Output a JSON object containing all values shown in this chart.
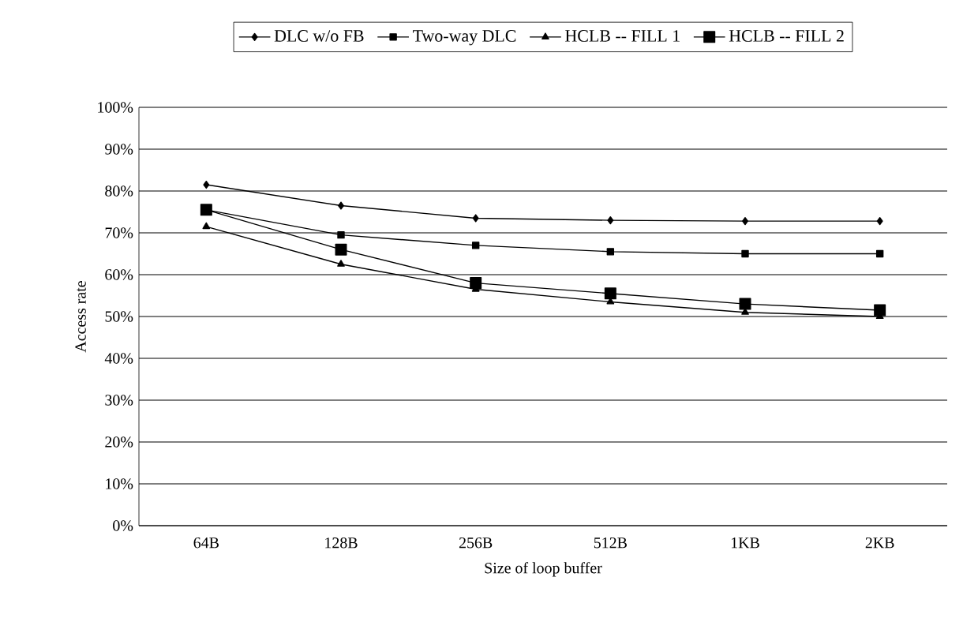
{
  "chart_data": {
    "type": "line",
    "xlabel": "Size of loop buffer",
    "ylabel": "Access rate",
    "categories": [
      "64B",
      "128B",
      "256B",
      "512B",
      "1KB",
      "2KB"
    ],
    "series": [
      {
        "name": "DLC w/o FB",
        "color": "#000000",
        "marker": "diamond",
        "values": [
          81.5,
          76.5,
          73.5,
          73,
          72.8,
          72.8
        ]
      },
      {
        "name": "Two-way DLC",
        "color": "#000000",
        "marker": "square",
        "values": [
          75.5,
          69.5,
          67,
          65.5,
          65,
          65
        ]
      },
      {
        "name": "HCLB -- FILL 1",
        "color": "#000000",
        "marker": "triangle",
        "values": [
          71.5,
          62.5,
          56.5,
          53.5,
          51,
          50
        ]
      },
      {
        "name": "HCLB -- FILL 2",
        "color": "#000000",
        "marker": "square",
        "values": [
          75.5,
          66,
          58,
          55.5,
          53,
          51.5
        ]
      }
    ],
    "ylim": [
      0,
      100
    ],
    "yticks": [
      {
        "value": 0,
        "label": "0%"
      },
      {
        "value": 10,
        "label": "10%"
      },
      {
        "value": 20,
        "label": "20%"
      },
      {
        "value": 30,
        "label": "30%"
      },
      {
        "value": 40,
        "label": "40%"
      },
      {
        "value": 50,
        "label": "50%"
      },
      {
        "value": 60,
        "label": "60%"
      },
      {
        "value": 70,
        "label": "70%"
      },
      {
        "value": 80,
        "label": "80%"
      },
      {
        "value": 90,
        "label": "90%"
      },
      {
        "value": 100,
        "label": "100%"
      }
    ],
    "grid": "y",
    "legend": "top",
    "line_style": "solid"
  }
}
